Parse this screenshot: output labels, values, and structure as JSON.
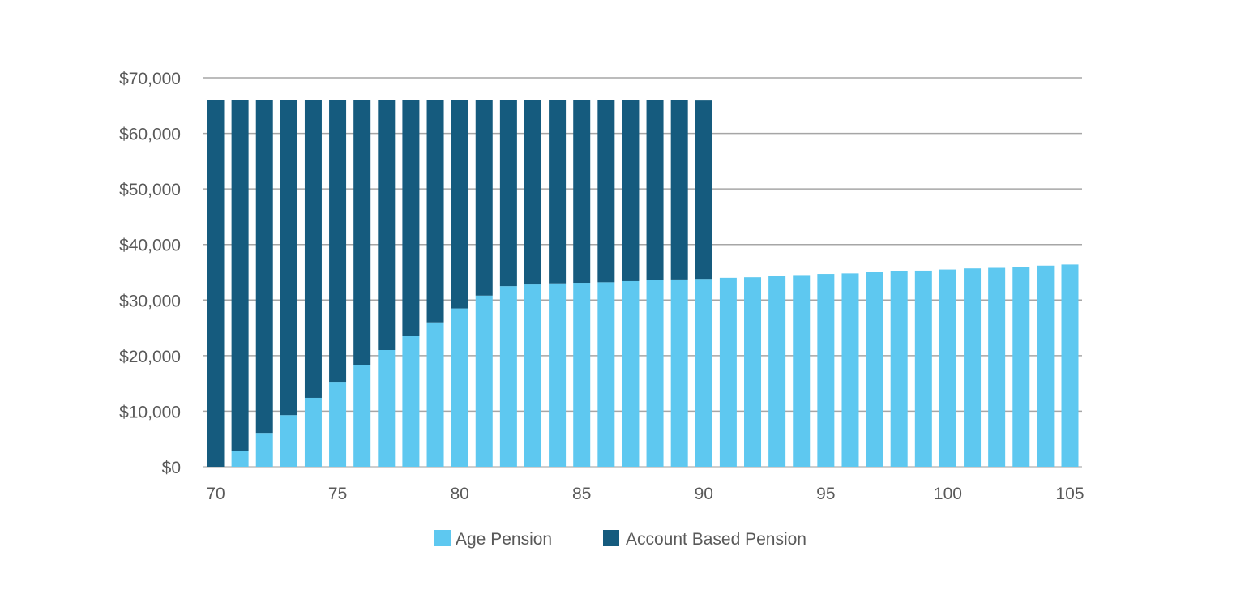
{
  "chart_data": {
    "type": "bar",
    "stacked": true,
    "title": "",
    "xlabel": "",
    "ylabel": "",
    "ylim": [
      0,
      70000
    ],
    "y_ticks": [
      0,
      10000,
      20000,
      30000,
      40000,
      50000,
      60000,
      70000
    ],
    "y_tick_labels": [
      "$0",
      "$10,000",
      "$20,000",
      "$30,000",
      "$40,000",
      "$50,000",
      "$60,000",
      "$70,000"
    ],
    "x": [
      70,
      71,
      72,
      73,
      74,
      75,
      76,
      77,
      78,
      79,
      80,
      81,
      82,
      83,
      84,
      85,
      86,
      87,
      88,
      89,
      90,
      91,
      92,
      93,
      94,
      95,
      96,
      97,
      98,
      99,
      100,
      101,
      102,
      103,
      104,
      105
    ],
    "x_ticks": [
      70,
      75,
      80,
      85,
      90,
      95,
      100,
      105
    ],
    "x_tick_labels": [
      "70",
      "75",
      "80",
      "85",
      "90",
      "95",
      "100",
      "105"
    ],
    "grid": true,
    "legend_position": "bottom",
    "series": [
      {
        "name": "Age Pension",
        "color": "#5ec8f0",
        "values": [
          0,
          2800,
          6100,
          9300,
          12400,
          15300,
          18300,
          21000,
          23600,
          26000,
          28500,
          30800,
          32500,
          32800,
          33000,
          33100,
          33200,
          33400,
          33600,
          33700,
          33800,
          34000,
          34100,
          34300,
          34500,
          34700,
          34800,
          35000,
          35200,
          35300,
          35500,
          35700,
          35800,
          36000,
          36200,
          36400
        ]
      },
      {
        "name": "Account Based Pension",
        "color": "#155b7e",
        "values": [
          66000,
          63200,
          59900,
          56700,
          53600,
          50700,
          47700,
          45000,
          42400,
          40000,
          37500,
          35200,
          33500,
          33200,
          33000,
          32900,
          32800,
          32600,
          32400,
          32300,
          32100,
          0,
          0,
          0,
          0,
          0,
          0,
          0,
          0,
          0,
          0,
          0,
          0,
          0,
          0,
          0
        ]
      }
    ]
  }
}
